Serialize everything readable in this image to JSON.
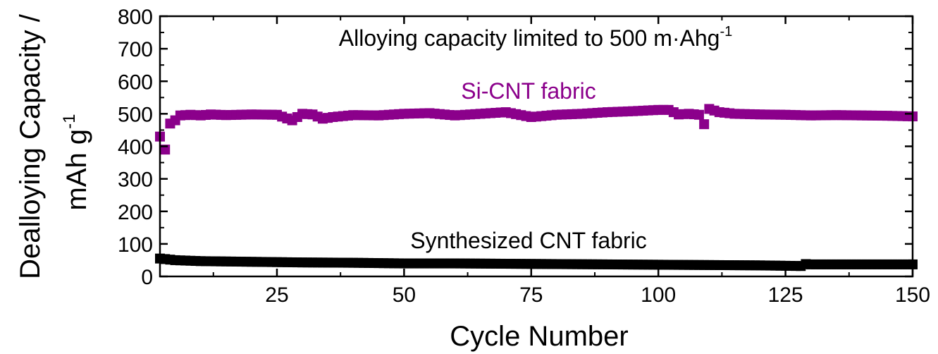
{
  "chart_data": {
    "type": "scatter",
    "title": "",
    "xlabel": "Cycle Number",
    "ylabel_line1": "Dealloying Capacity /",
    "ylabel_line2_base": "mAh g",
    "ylabel_line2_sup": "-1",
    "xlim": [
      2,
      150
    ],
    "ylim": [
      0,
      800
    ],
    "xticks": [
      25,
      50,
      75,
      100,
      125,
      150
    ],
    "yticks": [
      0,
      100,
      200,
      300,
      400,
      500,
      600,
      700,
      800
    ],
    "grid": false,
    "annotations": {
      "limit_text_base": "Alloying capacity limited to 500 m·Ahg",
      "limit_text_sup": "-1",
      "si_label": "Si-CNT fabric",
      "cnt_label": "Synthesized CNT fabric"
    },
    "colors": {
      "si": "#8b008b",
      "cnt": "#000000"
    },
    "series": [
      {
        "name": "Si-CNT fabric",
        "color": "#8b008b",
        "x": [
          2,
          3,
          4,
          5,
          6,
          8,
          10,
          12,
          15,
          20,
          25,
          28,
          30,
          32,
          34,
          36,
          40,
          45,
          50,
          55,
          60,
          65,
          70,
          75,
          80,
          85,
          90,
          95,
          100,
          102,
          104,
          106,
          108,
          109,
          110,
          112,
          115,
          120,
          125,
          130,
          135,
          140,
          145,
          150
        ],
        "y": [
          430,
          390,
          470,
          480,
          495,
          497,
          495,
          498,
          496,
          498,
          497,
          480,
          500,
          498,
          485,
          490,
          496,
          495,
          500,
          502,
          495,
          500,
          505,
          490,
          497,
          500,
          505,
          508,
          512,
          512,
          498,
          500,
          497,
          468,
          515,
          505,
          500,
          498,
          497,
          495,
          496,
          495,
          494,
          492
        ]
      },
      {
        "name": "Synthesized CNT fabric",
        "color": "#000000",
        "x": [
          2,
          5,
          10,
          20,
          30,
          40,
          50,
          60,
          70,
          80,
          90,
          100,
          110,
          120,
          128,
          129,
          130,
          140,
          150
        ],
        "y": [
          55,
          50,
          47,
          45,
          43,
          42,
          40,
          40,
          39,
          38,
          37,
          36,
          35,
          34,
          32,
          38,
          37,
          37,
          37
        ]
      }
    ]
  }
}
